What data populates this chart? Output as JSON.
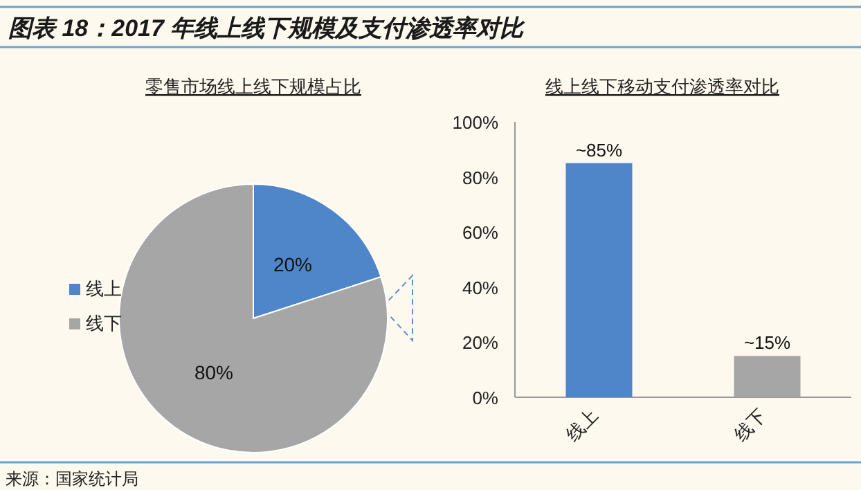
{
  "chart_data": [
    {
      "type": "pie",
      "title": "图表 18：2017 年线上线下规模及支付渗透率对比",
      "subtitle": "零售市场线上线下规模占比",
      "categories": [
        "线上",
        "线下"
      ],
      "values": [
        20,
        80
      ],
      "colors": [
        "#4f86c9",
        "#a6a6a6"
      ],
      "value_labels": [
        "20%",
        "80%"
      ],
      "legend": "left"
    },
    {
      "type": "bar",
      "title": "线上线下移动支付渗透率对比",
      "categories": [
        "线上",
        "线下"
      ],
      "values": [
        85,
        15
      ],
      "colors": [
        "#4f86c9",
        "#a6a6a6"
      ],
      "value_labels": [
        "~85%",
        "~15%"
      ],
      "ylim": [
        0,
        100
      ],
      "yticks": [
        {
          "value": 0,
          "label": "0%"
        },
        {
          "value": 20,
          "label": "20%"
        },
        {
          "value": 40,
          "label": "40%"
        },
        {
          "value": 60,
          "label": "60%"
        },
        {
          "value": 80,
          "label": "80%"
        },
        {
          "value": 100,
          "label": "100%"
        }
      ],
      "annotations": [
        "来源：国家统计局"
      ]
    }
  ]
}
